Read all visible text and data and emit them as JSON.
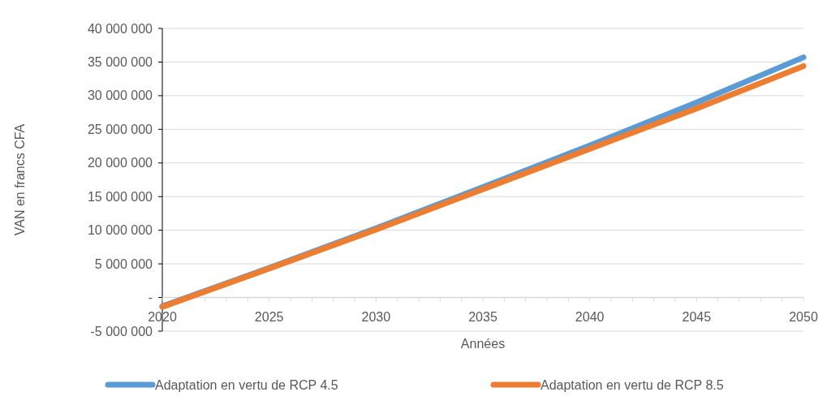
{
  "chart_data": {
    "type": "line",
    "xlabel": "Années",
    "ylabel": "VAN en francs CFA",
    "x": [
      2020,
      2025,
      2030,
      2035,
      2040,
      2045,
      2050
    ],
    "xlim": [
      2020,
      2050
    ],
    "xticks": [
      2020,
      2025,
      2030,
      2035,
      2040,
      2045,
      2050
    ],
    "ylim": [
      -5000000,
      40000000
    ],
    "yticks": [
      {
        "value": -5000000,
        "label": "-5 000 000"
      },
      {
        "value": 0,
        "label": "-"
      },
      {
        "value": 5000000,
        "label": "5 000 000"
      },
      {
        "value": 10000000,
        "label": "10 000 000"
      },
      {
        "value": 15000000,
        "label": "15 000 000"
      },
      {
        "value": 20000000,
        "label": "20 000 000"
      },
      {
        "value": 25000000,
        "label": "25 000 000"
      },
      {
        "value": 30000000,
        "label": "30 000 000"
      },
      {
        "value": 35000000,
        "label": "35 000 000"
      },
      {
        "value": 40000000,
        "label": "40 000 000"
      }
    ],
    "grid": "y",
    "legend": "bottom",
    "marker": "none",
    "line_style": "solid",
    "series": [
      {
        "name": "Adaptation en vertu de RCP 4.5",
        "color": "#5b9bd5",
        "values": [
          -1300000,
          4400000,
          10300000,
          16400000,
          22600000,
          29000000,
          35700000
        ]
      },
      {
        "name": "Adaptation en vertu de RCP 8.5",
        "color": "#ed7d31",
        "values": [
          -1400000,
          4300000,
          10100000,
          16100000,
          22100000,
          28100000,
          34400000
        ]
      }
    ]
  }
}
